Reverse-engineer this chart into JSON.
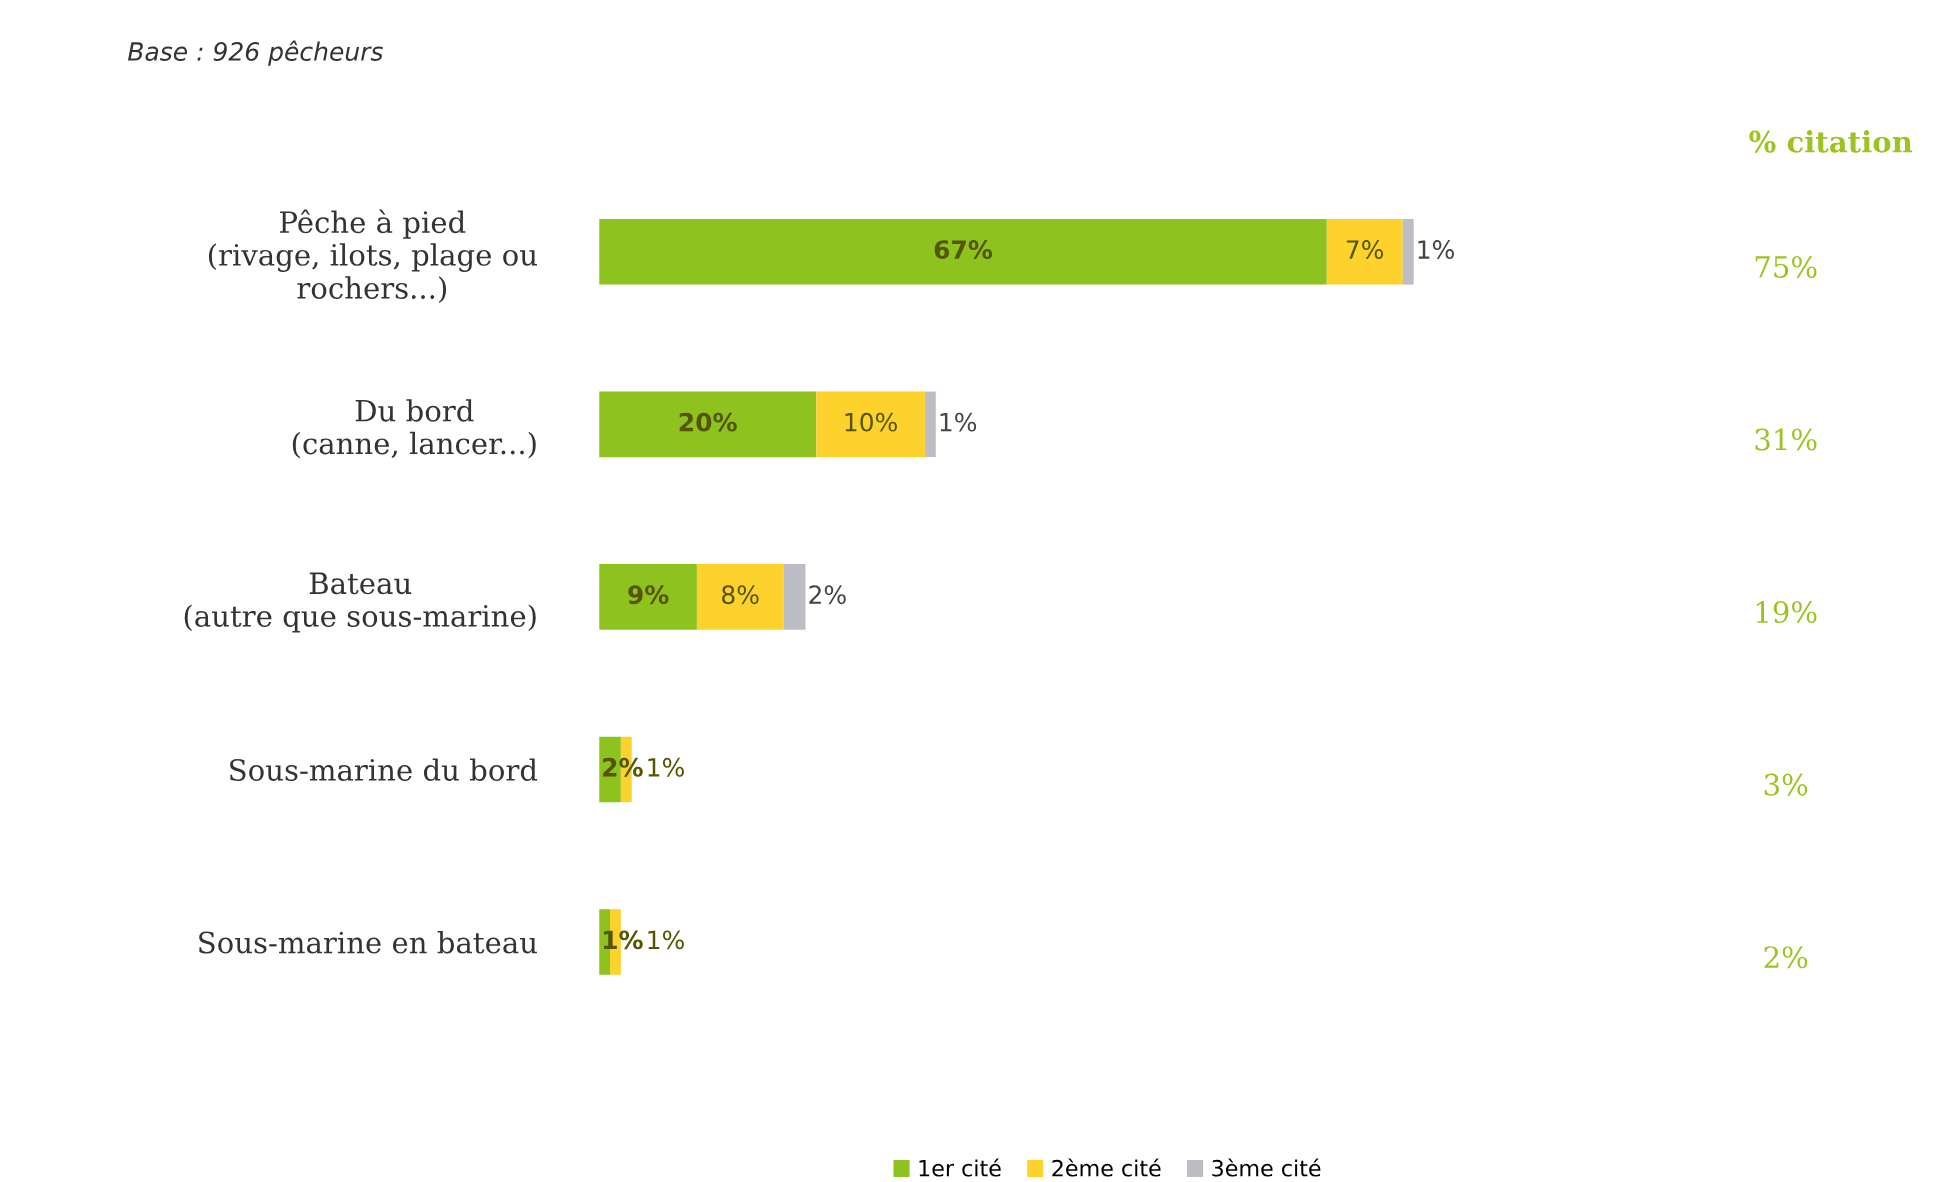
{
  "chart_data": {
    "type": "bar",
    "orientation": "horizontal",
    "stacked": true,
    "categories": [
      "Pêche à pied\n(rivage, ilots, plage ou\nrochers...)",
      "Du bord\n(canne, lancer...)",
      "Bateau\n(autre que sous-marine)",
      "Sous-marine du bord",
      "Sous-marine en bateau"
    ],
    "series": [
      {
        "name": "1er cité",
        "color": "#8dc21f",
        "values": [
          67,
          20,
          9,
          2,
          1
        ],
        "value_labels": [
          "67%",
          "20%",
          "9%",
          "2%",
          "1%"
        ]
      },
      {
        "name": "2ème cité",
        "color": "#fdd22d",
        "values": [
          7,
          10,
          8,
          1,
          1
        ],
        "value_labels": [
          "7%",
          "10%",
          "8%",
          "1%",
          "1%"
        ]
      },
      {
        "name": "3ème cité",
        "color": "#bdbdc6",
        "values": [
          1,
          1,
          2,
          null,
          null
        ],
        "value_labels": [
          "1%",
          "1%",
          "2%",
          null,
          null
        ]
      }
    ],
    "annotations": [
      "Base : 926 pêcheurs",
      "% citation",
      "75%",
      "31%",
      "19%",
      "3%",
      "2%"
    ],
    "legend": "bottom",
    "grid": false
  }
}
